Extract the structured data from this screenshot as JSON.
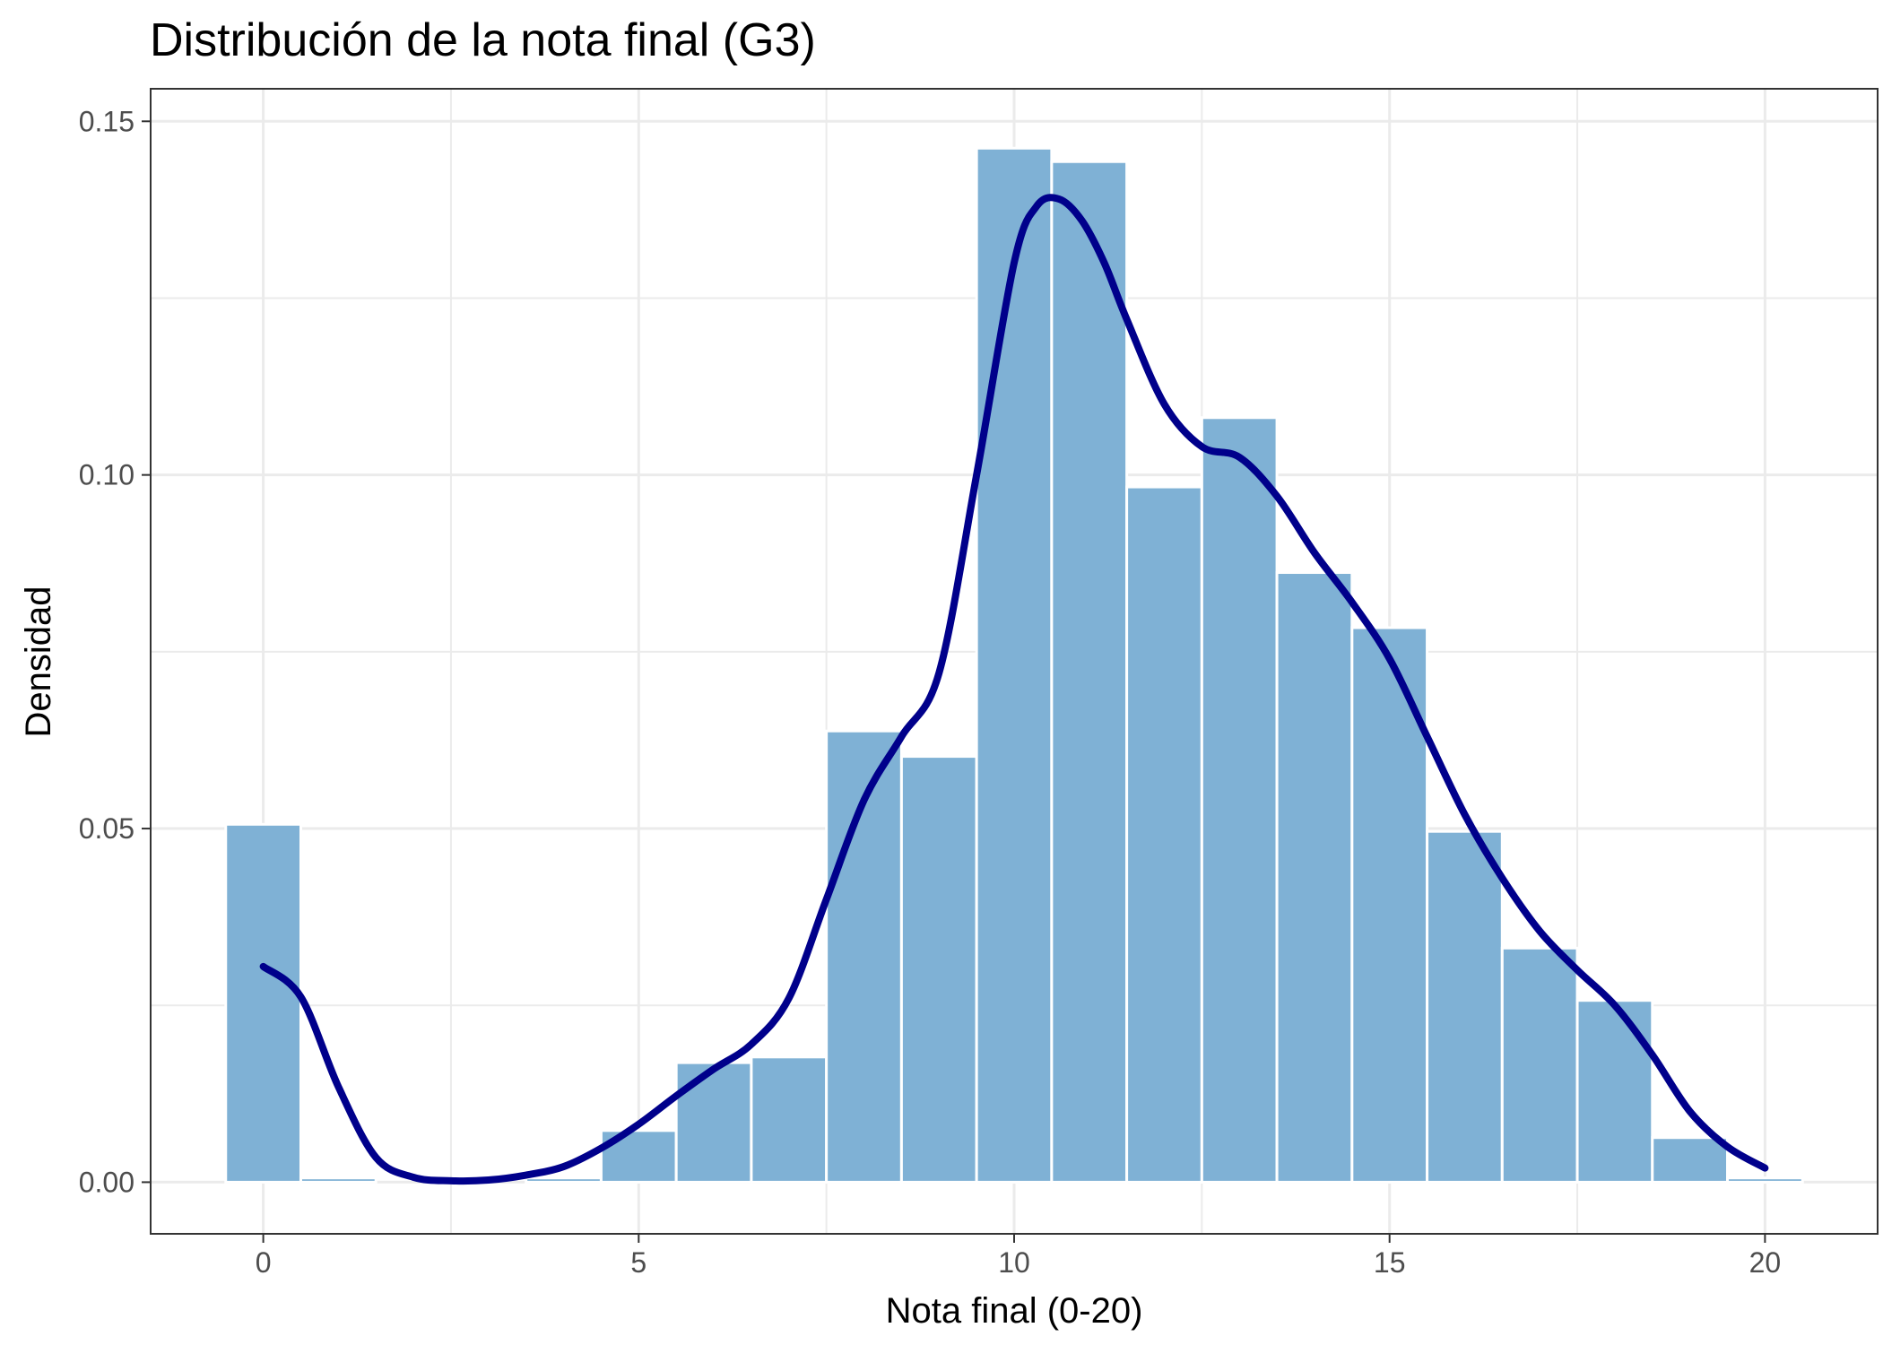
{
  "colors": {
    "bar_fill": "#7fb1d5",
    "bar_stroke": "#ffffff",
    "density_line": "#00008b",
    "grid": "#ebebeb",
    "panel_border": "#333333",
    "background": "#ffffff"
  },
  "chart_data": {
    "type": "bar",
    "title": "Distribución de la nota final (G3)",
    "xlabel": "Nota final (0-20)",
    "ylabel": "Densidad",
    "xlim": [
      -1.5,
      21.5
    ],
    "ylim": [
      -0.0073,
      0.1546
    ],
    "x_ticks": [
      0,
      5,
      10,
      15,
      20
    ],
    "x_tick_labels": [
      "0",
      "5",
      "10",
      "15",
      "20"
    ],
    "y_ticks": [
      0.0,
      0.05,
      0.1,
      0.15
    ],
    "y_tick_labels": [
      "0.00",
      "0.05",
      "0.10",
      "0.15"
    ],
    "grid": true,
    "bin_width": 1,
    "histogram": {
      "bin_centers": [
        0,
        1,
        2,
        3,
        4,
        5,
        6,
        7,
        8,
        9,
        10,
        11,
        12,
        13,
        14,
        15,
        16,
        17,
        18,
        19,
        20
      ],
      "density": [
        0.0506,
        0.0006,
        0,
        0,
        0.0006,
        0.0073,
        0.0169,
        0.0177,
        0.0638,
        0.0602,
        0.1462,
        0.1443,
        0.0983,
        0.1081,
        0.0862,
        0.0784,
        0.0496,
        0.0331,
        0.0257,
        0.0063,
        0.0006
      ]
    },
    "density_curve": {
      "x": [
        0,
        0.5,
        1.0,
        1.5,
        2.0,
        2.5,
        3.0,
        3.5,
        4.0,
        4.5,
        5.0,
        5.5,
        6.0,
        6.5,
        7.0,
        7.5,
        8.0,
        8.5,
        9.0,
        9.5,
        10.0,
        10.3,
        10.6,
        10.9,
        11.2,
        11.5,
        12.0,
        12.5,
        13.0,
        13.5,
        14.0,
        14.5,
        15.0,
        15.5,
        16.0,
        16.5,
        17.0,
        17.5,
        18.0,
        18.5,
        19.0,
        19.5,
        20.0
      ],
      "y": [
        0.0305,
        0.0262,
        0.0135,
        0.0035,
        0.0007,
        0.0002,
        0.0003,
        0.001,
        0.0022,
        0.0048,
        0.0082,
        0.0122,
        0.016,
        0.0195,
        0.026,
        0.04,
        0.054,
        0.063,
        0.072,
        0.1,
        0.13,
        0.138,
        0.139,
        0.136,
        0.13,
        0.122,
        0.11,
        0.104,
        0.1025,
        0.097,
        0.089,
        0.082,
        0.074,
        0.063,
        0.052,
        0.043,
        0.0355,
        0.03,
        0.025,
        0.018,
        0.01,
        0.005,
        0.002
      ]
    }
  }
}
